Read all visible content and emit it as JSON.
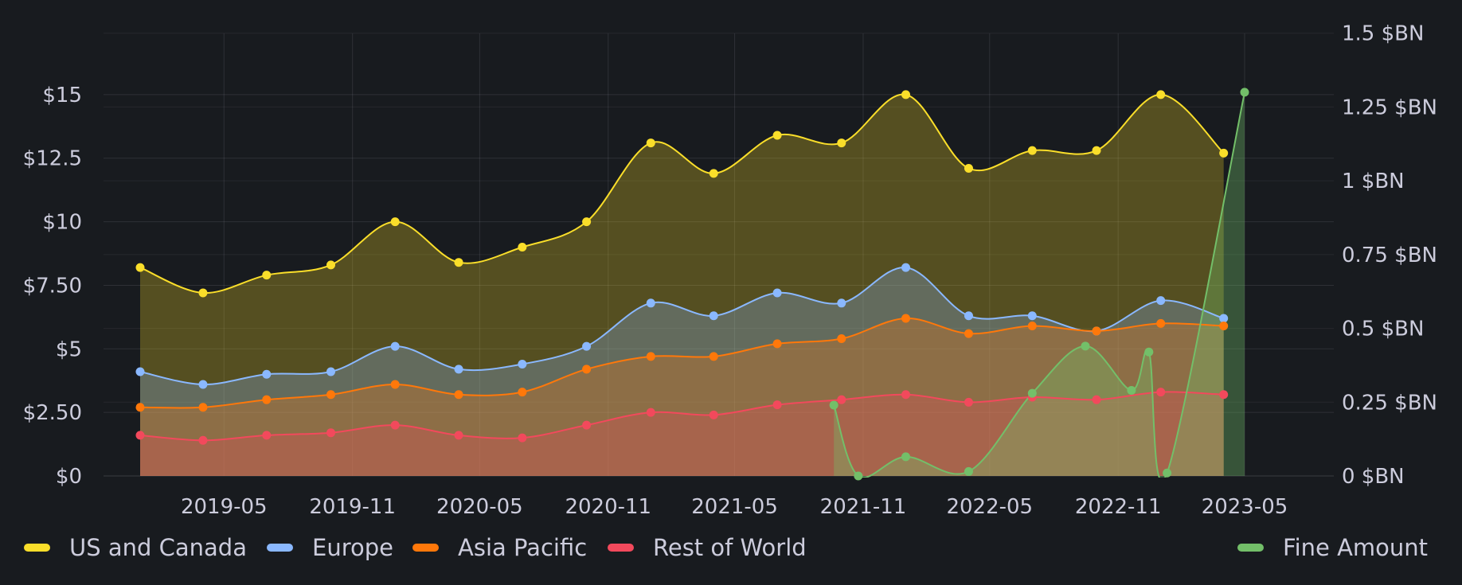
{
  "chart_data": {
    "type": "area",
    "x": [
      "2019-01",
      "2019-04",
      "2019-07",
      "2019-10",
      "2020-01",
      "2020-04",
      "2020-07",
      "2020-10",
      "2021-01",
      "2021-04",
      "2021-07",
      "2021-10",
      "2022-01",
      "2022-04",
      "2022-07",
      "2022-10",
      "2023-01",
      "2023-04"
    ],
    "x_ticks": [
      "2019-05",
      "2019-11",
      "2020-05",
      "2020-11",
      "2021-05",
      "2021-11",
      "2022-05",
      "2022-11",
      "2023-05"
    ],
    "left_axis": {
      "ticks": [
        "$0",
        "$2.50",
        "$5",
        "$7.50",
        "$10",
        "$12.5",
        "$15"
      ],
      "ylim": [
        0,
        17
      ]
    },
    "right_axis": {
      "ticks": [
        "0 $BN",
        "0.25 $BN",
        "0.5 $BN",
        "0.75 $BN",
        "1 $BN",
        "1.25 $BN",
        "1.5 $BN"
      ],
      "ylim": [
        0,
        1.51
      ]
    },
    "series": [
      {
        "name": "US and Canada",
        "axis": "left",
        "color": "#fade2a",
        "values": [
          8.2,
          7.2,
          7.9,
          8.3,
          10.0,
          8.4,
          9.0,
          10.0,
          13.1,
          11.9,
          13.4,
          13.1,
          15.0,
          12.1,
          12.8,
          12.8,
          15.0,
          12.7
        ]
      },
      {
        "name": "Europe",
        "axis": "left",
        "color": "#8ab8ff",
        "values": [
          4.1,
          3.6,
          4.0,
          4.1,
          5.1,
          4.2,
          4.4,
          5.1,
          6.8,
          6.3,
          7.2,
          6.8,
          8.2,
          6.3,
          6.3,
          5.7,
          6.9,
          6.2
        ]
      },
      {
        "name": "Asia Pacific",
        "axis": "left",
        "color": "#ff780a",
        "values": [
          2.7,
          2.7,
          3.0,
          3.2,
          3.6,
          3.2,
          3.3,
          4.2,
          4.7,
          4.7,
          5.2,
          5.4,
          6.2,
          5.6,
          5.9,
          5.7,
          6.0,
          5.9
        ]
      },
      {
        "name": "Rest of World",
        "axis": "left",
        "color": "#f2495c",
        "values": [
          1.6,
          1.4,
          1.6,
          1.7,
          2.0,
          1.6,
          1.5,
          2.0,
          2.5,
          2.4,
          2.8,
          3.0,
          3.2,
          2.9,
          3.1,
          3.0,
          3.3,
          3.2
        ]
      },
      {
        "name": "Fine Amount",
        "axis": "right",
        "color": "#73bf69",
        "x": [
          "2021-09-20",
          "2021-10-25",
          "2022-01-01",
          "2022-04-01",
          "2022-07-01",
          "2022-09-15",
          "2022-11-20",
          "2022-12-15",
          "2023-01-10",
          "2023-05-01"
        ],
        "values": [
          0.24,
          0.0,
          0.065,
          0.015,
          0.28,
          0.44,
          0.29,
          0.42,
          0.01,
          1.3
        ]
      }
    ],
    "legend": {
      "placement": "bottom"
    },
    "grid": true
  }
}
